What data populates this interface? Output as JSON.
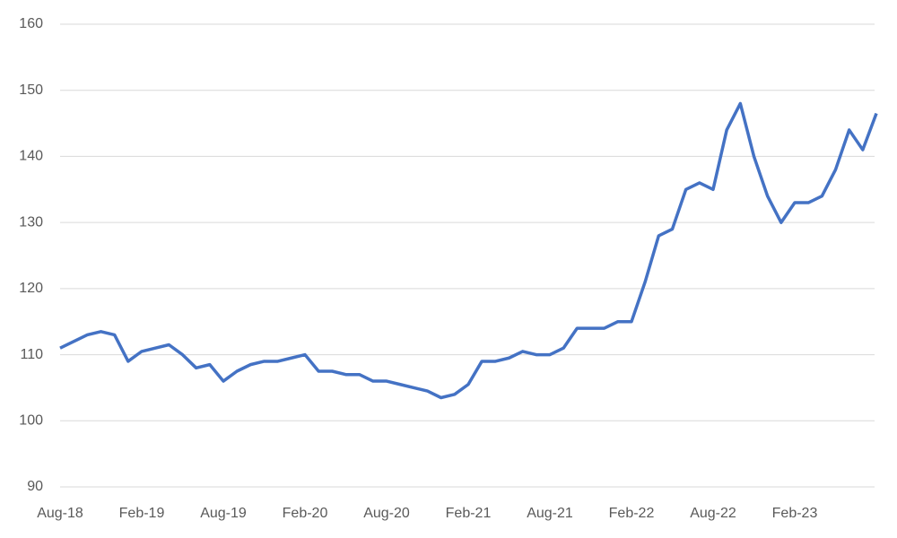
{
  "chart_data": {
    "type": "line",
    "categories": [
      "Aug-18",
      null,
      null,
      null,
      null,
      null,
      "Feb-19",
      null,
      null,
      null,
      null,
      null,
      "Aug-19",
      null,
      null,
      null,
      null,
      null,
      "Feb-20",
      null,
      null,
      null,
      null,
      null,
      "Aug-20",
      null,
      null,
      null,
      null,
      null,
      "Feb-21",
      null,
      null,
      null,
      null,
      null,
      "Aug-21",
      null,
      null,
      null,
      null,
      null,
      "Feb-22",
      null,
      null,
      null,
      null,
      null,
      "Aug-22",
      null,
      null,
      null,
      null,
      null,
      "Feb-23",
      null,
      null,
      null,
      null,
      null,
      null
    ],
    "values": [
      111,
      112,
      113,
      113.5,
      113,
      109,
      110.5,
      111,
      111.5,
      110,
      108,
      108.5,
      106,
      107.5,
      108.5,
      109,
      109,
      109.5,
      110,
      107.5,
      107.5,
      107,
      107,
      106,
      106,
      105.5,
      105,
      104.5,
      103.5,
      104,
      105.5,
      109,
      109,
      109.5,
      110.5,
      110,
      110,
      111,
      114,
      114,
      114,
      115,
      115,
      121,
      128,
      129,
      135,
      136,
      135,
      144,
      148,
      140,
      134,
      130,
      133,
      133,
      134,
      138,
      144,
      141,
      146.5
    ],
    "color": "#4472c4",
    "ylim": [
      90,
      160
    ],
    "yticks": [
      90,
      100,
      110,
      120,
      130,
      140,
      150,
      160
    ],
    "grid": true
  }
}
